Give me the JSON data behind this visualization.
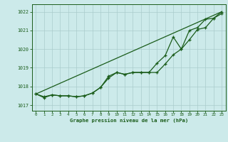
{
  "title": "Graphe pression niveau de la mer (hPa)",
  "bg_color": "#cceaea",
  "grid_color": "#aacccc",
  "line_color": "#1a5c1a",
  "xlim": [
    -0.5,
    23.5
  ],
  "ylim": [
    1016.7,
    1022.4
  ],
  "yticks": [
    1017,
    1018,
    1019,
    1020,
    1021,
    1022
  ],
  "xticks": [
    0,
    1,
    2,
    3,
    4,
    5,
    6,
    7,
    8,
    9,
    10,
    11,
    12,
    13,
    14,
    15,
    16,
    17,
    18,
    19,
    20,
    21,
    22,
    23
  ],
  "trend_x": [
    0,
    23
  ],
  "trend_y": [
    1017.6,
    1022.0
  ],
  "series1_x": [
    0,
    1,
    2,
    3,
    4,
    5,
    6,
    7,
    8,
    9,
    10,
    11,
    12,
    13,
    14,
    15,
    16,
    17,
    18,
    19,
    20,
    21,
    22,
    23
  ],
  "series1_y": [
    1017.6,
    1017.45,
    1017.55,
    1017.5,
    1017.5,
    1017.45,
    1017.5,
    1017.65,
    1017.95,
    1018.45,
    1018.75,
    1018.65,
    1018.75,
    1018.75,
    1018.75,
    1018.75,
    1019.2,
    1019.7,
    1020.0,
    1020.5,
    1021.05,
    1021.15,
    1021.65,
    1021.9
  ],
  "series2_x": [
    0,
    1,
    2,
    3,
    4,
    5,
    6,
    7,
    8,
    9,
    10,
    11,
    12,
    13,
    14,
    15,
    16,
    17,
    18,
    19,
    20,
    21,
    22,
    23
  ],
  "series2_y": [
    1017.6,
    1017.4,
    1017.55,
    1017.5,
    1017.5,
    1017.45,
    1017.5,
    1017.65,
    1017.95,
    1018.55,
    1018.75,
    1018.65,
    1018.75,
    1018.75,
    1018.75,
    1019.25,
    1019.65,
    1020.65,
    1020.0,
    1021.0,
    1021.15,
    1021.6,
    1021.65,
    1022.0
  ]
}
